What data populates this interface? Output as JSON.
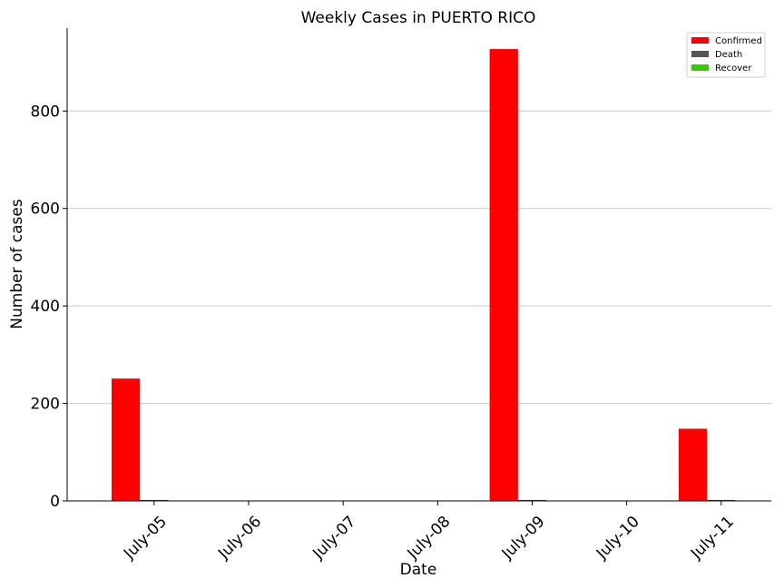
{
  "chart_data": {
    "type": "bar",
    "title": "Weekly Cases in PUERTO RICO",
    "xlabel": "Date",
    "ylabel": "Number of cases",
    "categories": [
      "July-05",
      "July-06",
      "July-07",
      "July-08",
      "July-09",
      "July-10",
      "July-11"
    ],
    "series": [
      {
        "name": "Confirmed",
        "color": "#ff0000",
        "values": [
          251,
          0,
          0,
          0,
          927,
          0,
          148
        ]
      },
      {
        "name": "Death",
        "color": "#555555",
        "values": [
          2,
          0,
          0,
          0,
          2,
          0,
          2
        ]
      },
      {
        "name": "Recover",
        "color": "#33cc00",
        "values": [
          0,
          0,
          0,
          0,
          0,
          0,
          0
        ]
      }
    ],
    "ylim": [
      0,
      970
    ],
    "yticks": [
      0,
      200,
      400,
      600,
      800
    ],
    "grid": "y",
    "legend_position": "top-right"
  }
}
